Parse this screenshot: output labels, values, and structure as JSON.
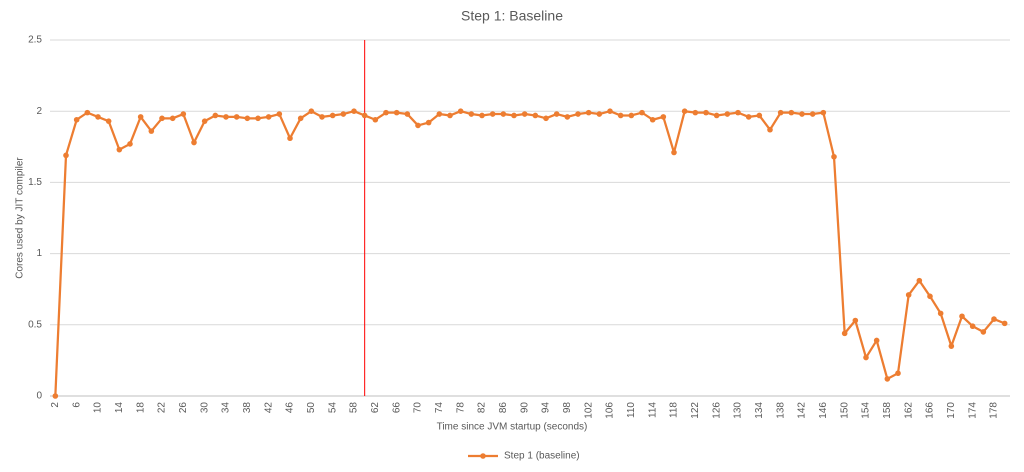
{
  "chart_data": {
    "type": "line",
    "title": "Step 1: Baseline",
    "x_label": "Time since JVM startup (seconds)",
    "y_label": "Cores used by JIT compiler",
    "categories": [
      "2",
      null,
      "6",
      null,
      "10",
      null,
      "14",
      null,
      "18",
      null,
      "22",
      null,
      "26",
      null,
      "30",
      null,
      "34",
      null,
      "38",
      null,
      "42",
      null,
      "46",
      null,
      "50",
      null,
      "54",
      null,
      "58",
      null,
      "62",
      null,
      "66",
      null,
      "70",
      null,
      "74",
      null,
      "78",
      null,
      "82",
      null,
      "86",
      null,
      "90",
      null,
      "94",
      null,
      "98",
      null,
      "102",
      null,
      "106",
      null,
      "110",
      null,
      "114",
      null,
      "118",
      null,
      "122",
      null,
      "126",
      null,
      "130",
      null,
      "134",
      null,
      "138",
      null,
      "142",
      null,
      "146",
      null,
      "150",
      null,
      "154",
      null,
      "158",
      null,
      "162",
      null,
      "166",
      null,
      "170",
      null,
      "174",
      null,
      "178",
      null
    ],
    "series": [
      {
        "name": "Step 1 (baseline)",
        "color": "#ed7d31",
        "values": [
          0,
          1.69,
          1.94,
          1.99,
          1.96,
          1.93,
          1.73,
          1.77,
          1.96,
          1.86,
          1.95,
          1.95,
          1.98,
          1.78,
          1.93,
          1.97,
          1.96,
          1.96,
          1.95,
          1.95,
          1.96,
          1.98,
          1.81,
          1.95,
          2.0,
          1.96,
          1.97,
          1.98,
          2.0,
          1.97,
          1.94,
          1.99,
          1.99,
          1.98,
          1.9,
          1.92,
          1.98,
          1.97,
          2.0,
          1.98,
          1.97,
          1.98,
          1.98,
          1.97,
          1.98,
          1.97,
          1.95,
          1.98,
          1.96,
          1.98,
          1.99,
          1.98,
          2.0,
          1.97,
          1.97,
          1.99,
          1.94,
          1.96,
          1.71,
          2.0,
          1.99,
          1.99,
          1.97,
          1.98,
          1.99,
          1.96,
          1.97,
          1.87,
          1.99,
          1.99,
          1.98,
          1.98,
          1.99,
          1.68,
          0.44,
          0.53,
          0.27,
          0.39,
          0.12,
          0.16,
          0.71,
          0.81,
          0.7,
          0.58,
          0.35,
          0.56,
          0.49,
          0.45,
          0.54,
          0.51
        ]
      }
    ],
    "marker_line": {
      "category_index": 29,
      "color": "#ff0000"
    },
    "ylim": [
      0,
      2.5
    ],
    "yticks": [
      0,
      0.5,
      1,
      1.5,
      2,
      2.5
    ],
    "grid": true,
    "legend": "bottom"
  }
}
